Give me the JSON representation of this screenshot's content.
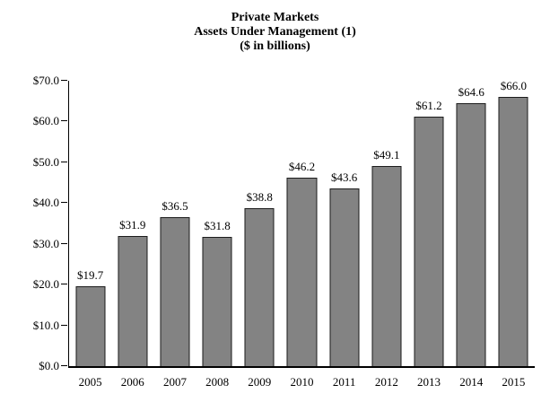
{
  "title": {
    "line1": "Private Markets",
    "line2": "Assets Under Management (1)",
    "line3": "($ in billions)"
  },
  "chart_data": {
    "type": "bar",
    "title": "Private Markets Assets Under Management (1) ($ in billions)",
    "categories": [
      "2005",
      "2006",
      "2007",
      "2008",
      "2009",
      "2010",
      "2011",
      "2012",
      "2013",
      "2014",
      "2015"
    ],
    "values": [
      19.7,
      31.9,
      36.5,
      31.8,
      38.8,
      46.2,
      43.6,
      49.1,
      61.2,
      64.6,
      66.0
    ],
    "value_labels": [
      "$19.7",
      "$31.9",
      "$36.5",
      "$31.8",
      "$38.8",
      "$46.2",
      "$43.6",
      "$49.1",
      "$61.2",
      "$64.6",
      "$66.0"
    ],
    "xlabel": "",
    "ylabel": "",
    "ylim": [
      0,
      70
    ],
    "ytick_step": 10,
    "ytick_labels": [
      "$0.0",
      "$10.0",
      "$20.0",
      "$30.0",
      "$40.0",
      "$50.0",
      "$60.0",
      "$70.0"
    ],
    "grid": false,
    "legend": "none",
    "bar_color": "#838383",
    "bar_border_color": "#1c1c1c",
    "axis_color": "#000000",
    "background_color": "#ffffff"
  }
}
